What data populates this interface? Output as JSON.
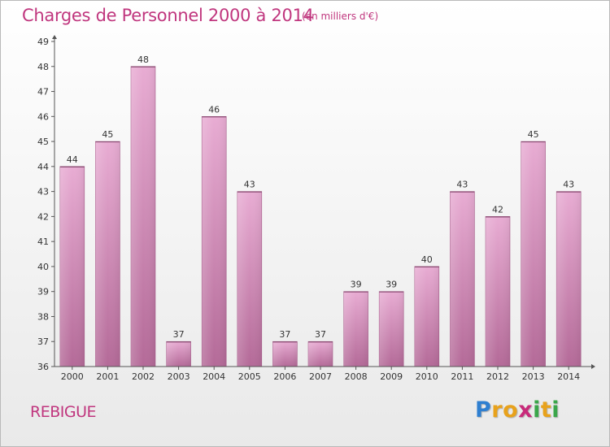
{
  "title": "Charges de Personnel 2000 à 2014",
  "subtitle": "(en milliers d'€)",
  "commune": "REBIGUE",
  "logo": {
    "text": "Proxiti",
    "letters": [
      {
        "ch": "P",
        "color": "#2f7fd0"
      },
      {
        "ch": "r",
        "color": "#e8a21c"
      },
      {
        "ch": "o",
        "color": "#e8a21c"
      },
      {
        "ch": "x",
        "color": "#c82a7a"
      },
      {
        "ch": "i",
        "color": "#3aa64a"
      },
      {
        "ch": "t",
        "color": "#e8a21c"
      },
      {
        "ch": "i",
        "color": "#3aa64a"
      }
    ]
  },
  "colors": {
    "title": "#c0367e",
    "bar_light": "#e6a8d0",
    "bar_dark": "#b86c9a",
    "axis": "#555555"
  },
  "chart_data": {
    "type": "bar",
    "categories": [
      "2000",
      "2001",
      "2002",
      "2003",
      "2004",
      "2005",
      "2006",
      "2007",
      "2008",
      "2009",
      "2010",
      "2011",
      "2012",
      "2013",
      "2014"
    ],
    "values": [
      44,
      45,
      48,
      37,
      46,
      43,
      37,
      37,
      39,
      39,
      40,
      43,
      42,
      45,
      43
    ],
    "ylim": [
      36,
      49
    ],
    "yticks": [
      36,
      37,
      38,
      39,
      40,
      41,
      42,
      43,
      44,
      45,
      46,
      47,
      48,
      49
    ],
    "grid": false,
    "legend": "none"
  }
}
